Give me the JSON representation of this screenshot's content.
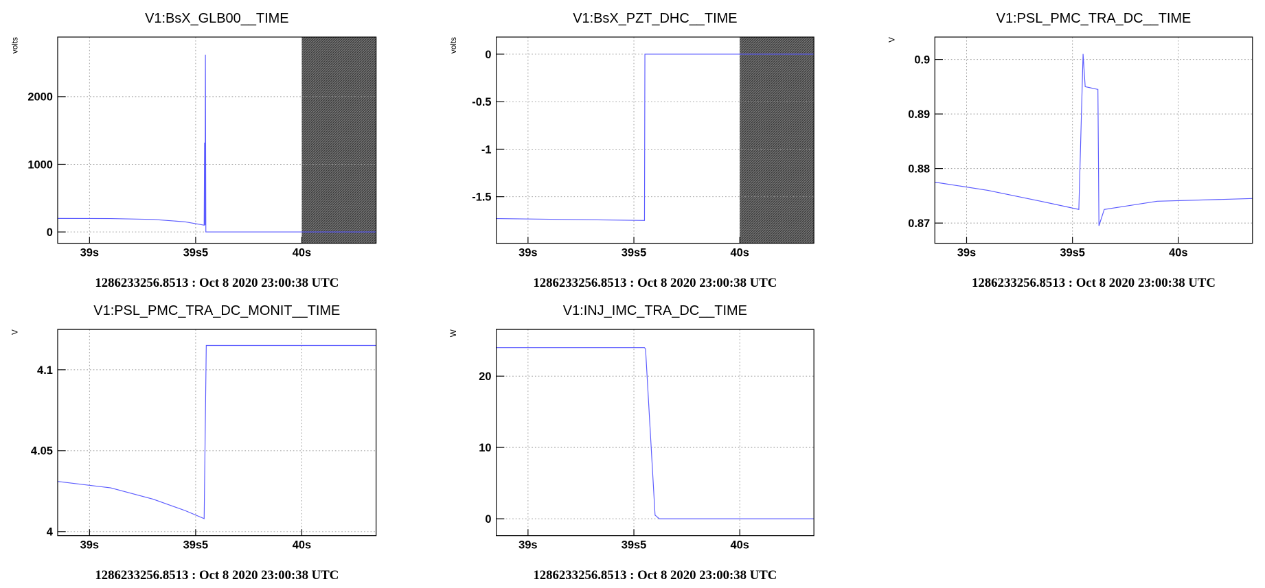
{
  "chart_data": [
    {
      "type": "line",
      "title": "V1:BsX_GLB00__TIME",
      "ylabel": "volts",
      "footer": "1286233256.8513 : Oct  8 2020 23:00:38 UTC",
      "color": "#5a5aff",
      "grid": true,
      "xlim": [
        38.85,
        40.35
      ],
      "xticks": [
        {
          "value": 39,
          "label": "39s"
        },
        {
          "value": 39.5,
          "label": "39s5"
        },
        {
          "value": 40,
          "label": "40s"
        }
      ],
      "ylim": [
        -167,
        2881
      ],
      "yticks": [
        0,
        1000,
        2000
      ],
      "shaded": [
        40,
        40.35
      ],
      "x": [
        38.85,
        39.1,
        39.3,
        39.45,
        39.54,
        39.542,
        39.544,
        39.546,
        39.548,
        39.6,
        40.35
      ],
      "values": [
        200,
        198,
        185,
        150,
        100,
        1320,
        100,
        2620,
        0,
        0,
        0
      ]
    },
    {
      "type": "line",
      "title": "V1:BsX_PZT_DHC__TIME",
      "ylabel": "volts",
      "footer": "1286233256.8513 : Oct  8 2020 23:00:38 UTC",
      "color": "#5a5aff",
      "grid": true,
      "xlim": [
        38.85,
        40.35
      ],
      "xticks": [
        {
          "value": 39,
          "label": "39s"
        },
        {
          "value": 39.5,
          "label": "39s5"
        },
        {
          "value": 40,
          "label": "40s"
        }
      ],
      "ylim": [
        -1.99,
        0.18
      ],
      "yticks": [
        -1.5,
        -1,
        -0.5,
        0
      ],
      "shaded": [
        40,
        40.35
      ],
      "x": [
        38.85,
        39.2,
        39.55,
        39.552,
        40.35
      ],
      "values": [
        -1.73,
        -1.74,
        -1.75,
        0,
        0
      ]
    },
    {
      "type": "line",
      "title": "V1:PSL_PMC_TRA_DC__TIME",
      "ylabel": "V",
      "footer": "1286233256.8513 : Oct  8 2020 23:00:38 UTC",
      "color": "#5a5aff",
      "grid": true,
      "xlim": [
        38.85,
        40.35
      ],
      "xticks": [
        {
          "value": 39,
          "label": "39s"
        },
        {
          "value": 39.5,
          "label": "39s5"
        },
        {
          "value": 40,
          "label": "40s"
        }
      ],
      "ylim": [
        0.8663,
        0.9041
      ],
      "yticks": [
        0.87,
        0.88,
        0.89,
        0.9
      ],
      "x": [
        38.85,
        39.1,
        39.35,
        39.53,
        39.55,
        39.56,
        39.62,
        39.625,
        39.65,
        39.9,
        40.35
      ],
      "values": [
        0.8775,
        0.876,
        0.874,
        0.8725,
        0.901,
        0.895,
        0.8945,
        0.8695,
        0.8725,
        0.874,
        0.8745
      ]
    },
    {
      "type": "line",
      "title": "V1:PSL_PMC_TRA_DC_MONIT__TIME",
      "ylabel": "V",
      "footer": "1286233256.8513 : Oct  8 2020 23:00:38 UTC",
      "color": "#5a5aff",
      "grid": true,
      "xlim": [
        38.85,
        40.35
      ],
      "xticks": [
        {
          "value": 39,
          "label": "39s"
        },
        {
          "value": 39.5,
          "label": "39s5"
        },
        {
          "value": 40,
          "label": "40s"
        }
      ],
      "ylim": [
        3.9975,
        4.1249
      ],
      "yticks": [
        4,
        4.05,
        4.1
      ],
      "x": [
        38.85,
        39.1,
        39.3,
        39.45,
        39.54,
        39.55,
        40.35
      ],
      "values": [
        4.031,
        4.027,
        4.02,
        4.013,
        4.008,
        4.115,
        4.115
      ]
    },
    {
      "type": "line",
      "title": "V1:INJ_IMC_TRA_DC__TIME",
      "ylabel": "W",
      "footer": "1286233256.8513 : Oct  8 2020 23:00:38 UTC",
      "color": "#5a5aff",
      "grid": true,
      "xlim": [
        38.85,
        40.35
      ],
      "xticks": [
        {
          "value": 39,
          "label": "39s"
        },
        {
          "value": 39.5,
          "label": "39s5"
        },
        {
          "value": 40,
          "label": "40s"
        }
      ],
      "ylim": [
        -2.37,
        26.55
      ],
      "yticks": [
        0,
        10,
        20
      ],
      "x": [
        38.85,
        39.55,
        39.555,
        39.6,
        39.62,
        40.35
      ],
      "values": [
        24,
        24,
        23.8,
        0.5,
        0,
        0
      ]
    }
  ]
}
